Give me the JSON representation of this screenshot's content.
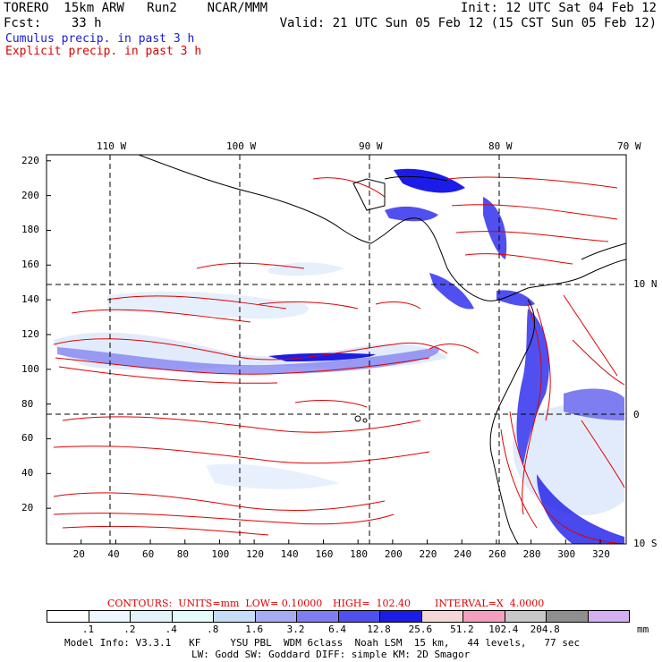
{
  "header": {
    "line1_left": "TORERO  15km ARW   Run2    NCAR/MMM",
    "line1_right": "Init: 12 UTC Sat 04 Feb 12",
    "line2_left": "Fcst:    33 h",
    "line2_right": "Valid: 21 UTC Sun 05 Feb 12 (15 CST Sun 05 Feb 12)",
    "legend_cumulus": "Cumulus precip. in past 3 h",
    "legend_explicit": "Explicit precip. in past 3 h"
  },
  "map": {
    "top_lon_labels": [
      "110 W",
      "100 W",
      "90 W",
      "80 W",
      "70 W"
    ],
    "right_lat_labels": [
      "10 N",
      "0",
      "10 S"
    ],
    "y_ticks": [
      "220",
      "200",
      "180",
      "160",
      "140",
      "120",
      "100",
      "80",
      "60",
      "40",
      "20"
    ],
    "x_ticks": [
      "20",
      "40",
      "60",
      "80",
      "100",
      "120",
      "140",
      "160",
      "180",
      "200",
      "220",
      "240",
      "260",
      "280",
      "300",
      "320"
    ]
  },
  "contours": {
    "label": "CONTOURS:  UNITS=mm  LOW= 0.10000",
    "high": "HIGH=  102.40",
    "interval": "INTERVAL=X  4.0000"
  },
  "colorbar": {
    "unit": "mm",
    "labels": [
      ".1",
      ".2",
      ".4",
      ".8",
      "1.6",
      "3.2",
      "6.4",
      "12.8",
      "25.6",
      "51.2",
      "102.4",
      "204.8"
    ],
    "colors": [
      "#ffffff",
      "#eef7ff",
      "#e3f3fb",
      "#e6fafa",
      "#c7dcf7",
      "#a6acf2",
      "#7e7ef0",
      "#5050f0",
      "#1c1ce8",
      "#f6d7d7",
      "#f59ec0",
      "#c8c8c8",
      "#8f8f8f",
      "#d4b0f2"
    ]
  },
  "footer": {
    "line1": "Model Info: V3.3.1   KF     YSU PBL  WDM 6class  Noah LSM  15 km,   44 levels,   77 sec",
    "line2": "LW: Godd SW: Goddard DIFF: simple KM: 2D Smagor"
  }
}
